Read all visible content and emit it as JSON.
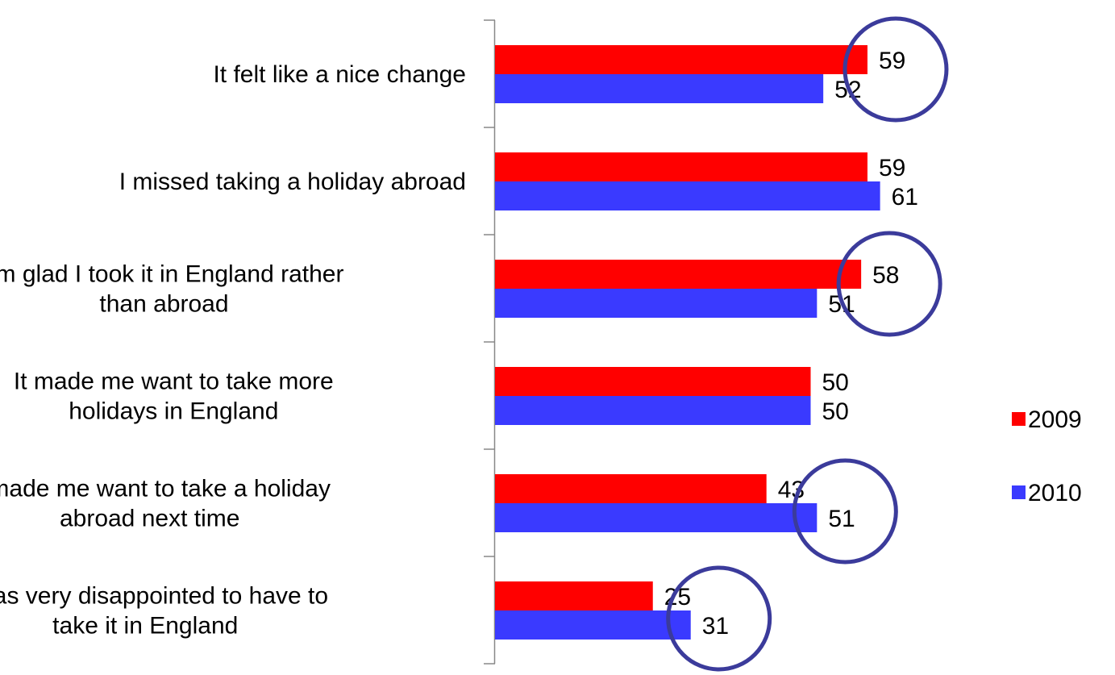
{
  "chart_data": {
    "type": "bar",
    "orientation": "horizontal",
    "title": "",
    "xlabel": "",
    "ylabel": "",
    "xlim": [
      0,
      70
    ],
    "grid": false,
    "legend_position": "right",
    "categories": [
      [
        "It felt like a nice change"
      ],
      [
        "I missed taking a holiday abroad"
      ],
      [
        "I'm glad I took it in England rather",
        "than abroad"
      ],
      [
        "It made me want to take more",
        "holidays in England"
      ],
      [
        "It made me want to take a holiday",
        "abroad next time"
      ],
      [
        "I was very disappointed to have to",
        "take it in England"
      ]
    ],
    "series": [
      {
        "name": "2009",
        "color": "#ff0000",
        "values": [
          59,
          59,
          58,
          50,
          43,
          25
        ]
      },
      {
        "name": "2010",
        "color": "#3a3aff",
        "values": [
          52,
          61,
          51,
          50,
          51,
          31
        ]
      }
    ],
    "annotations": [
      {
        "type": "circle",
        "category": 0,
        "series": 0,
        "color": "#3b3b9b"
      },
      {
        "type": "circle",
        "category": 2,
        "series": 0,
        "color": "#3b3b9b"
      },
      {
        "type": "circle",
        "category": 4,
        "series": 1,
        "color": "#3b3b9b"
      },
      {
        "type": "circle",
        "category": 5,
        "series": 1,
        "color": "#3b3b9b"
      }
    ]
  }
}
